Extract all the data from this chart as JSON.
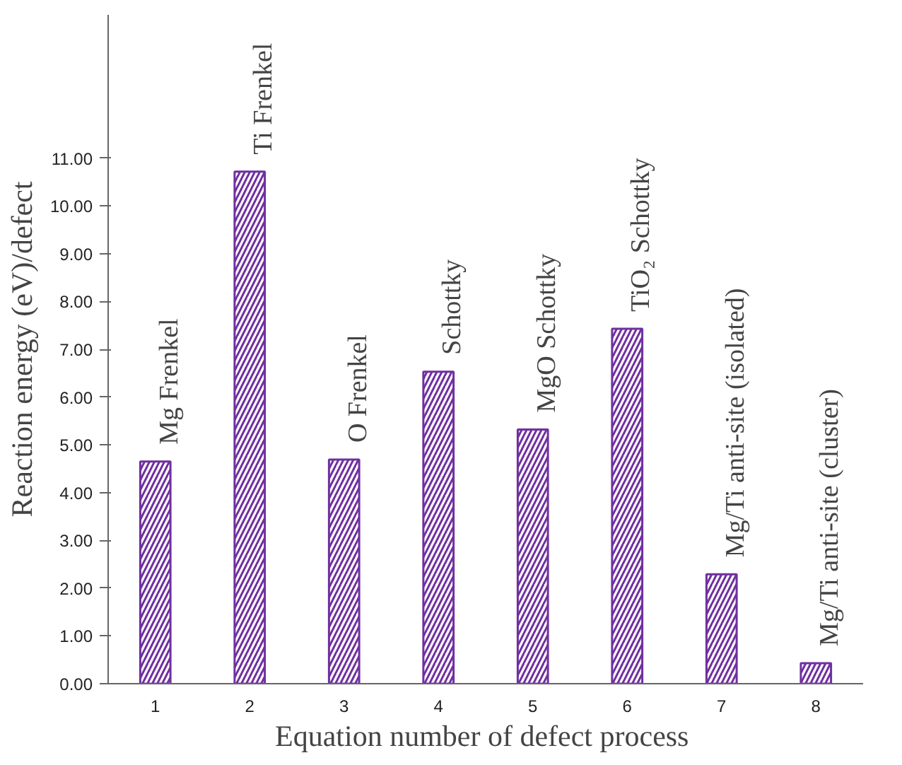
{
  "chart_data": {
    "type": "bar",
    "xlabel": "Equation number of  defect process",
    "ylabel": "Reaction energy (eV)/defect",
    "categories": [
      "1",
      "2",
      "3",
      "4",
      "5",
      "6",
      "7",
      "8"
    ],
    "values": [
      4.65,
      10.72,
      4.69,
      6.53,
      5.32,
      7.43,
      2.29,
      0.43
    ],
    "color": "#7030a0",
    "ylim": [
      0,
      14
    ],
    "yticks": [
      {
        "value": 0,
        "label": "0.00"
      },
      {
        "value": 1,
        "label": "1.00"
      },
      {
        "value": 2,
        "label": "2.00"
      },
      {
        "value": 3,
        "label": "3.00"
      },
      {
        "value": 4,
        "label": "4.00"
      },
      {
        "value": 5,
        "label": "5.00"
      },
      {
        "value": 6,
        "label": "6.00"
      },
      {
        "value": 7,
        "label": "7.00"
      },
      {
        "value": 8,
        "label": "8.00"
      },
      {
        "value": 9,
        "label": "9.00"
      },
      {
        "value": 10,
        "label": "10.00"
      },
      {
        "value": 11,
        "label": "11.00"
      }
    ],
    "annotations": [
      {
        "text": "Mg Frenkel",
        "x": "1",
        "y": 4.65
      },
      {
        "text": "Ti Frenkel",
        "x": "2",
        "y": 10.72
      },
      {
        "text": "O Frenkel",
        "x": "3",
        "y": 4.69
      },
      {
        "text": "Schottky",
        "x": "4",
        "y": 6.53
      },
      {
        "text": "MgO Schottky",
        "x": "5",
        "y": 5.32
      },
      {
        "text": "TiO₂ Schottky",
        "x": "6",
        "y": 7.43
      },
      {
        "text": "Mg/Ti anti-site (isolated)",
        "x": "7",
        "y": 2.29
      },
      {
        "text": "Mg/Ti anti-site (cluster)",
        "x": "8",
        "y": 0.43
      }
    ],
    "grid": false
  }
}
